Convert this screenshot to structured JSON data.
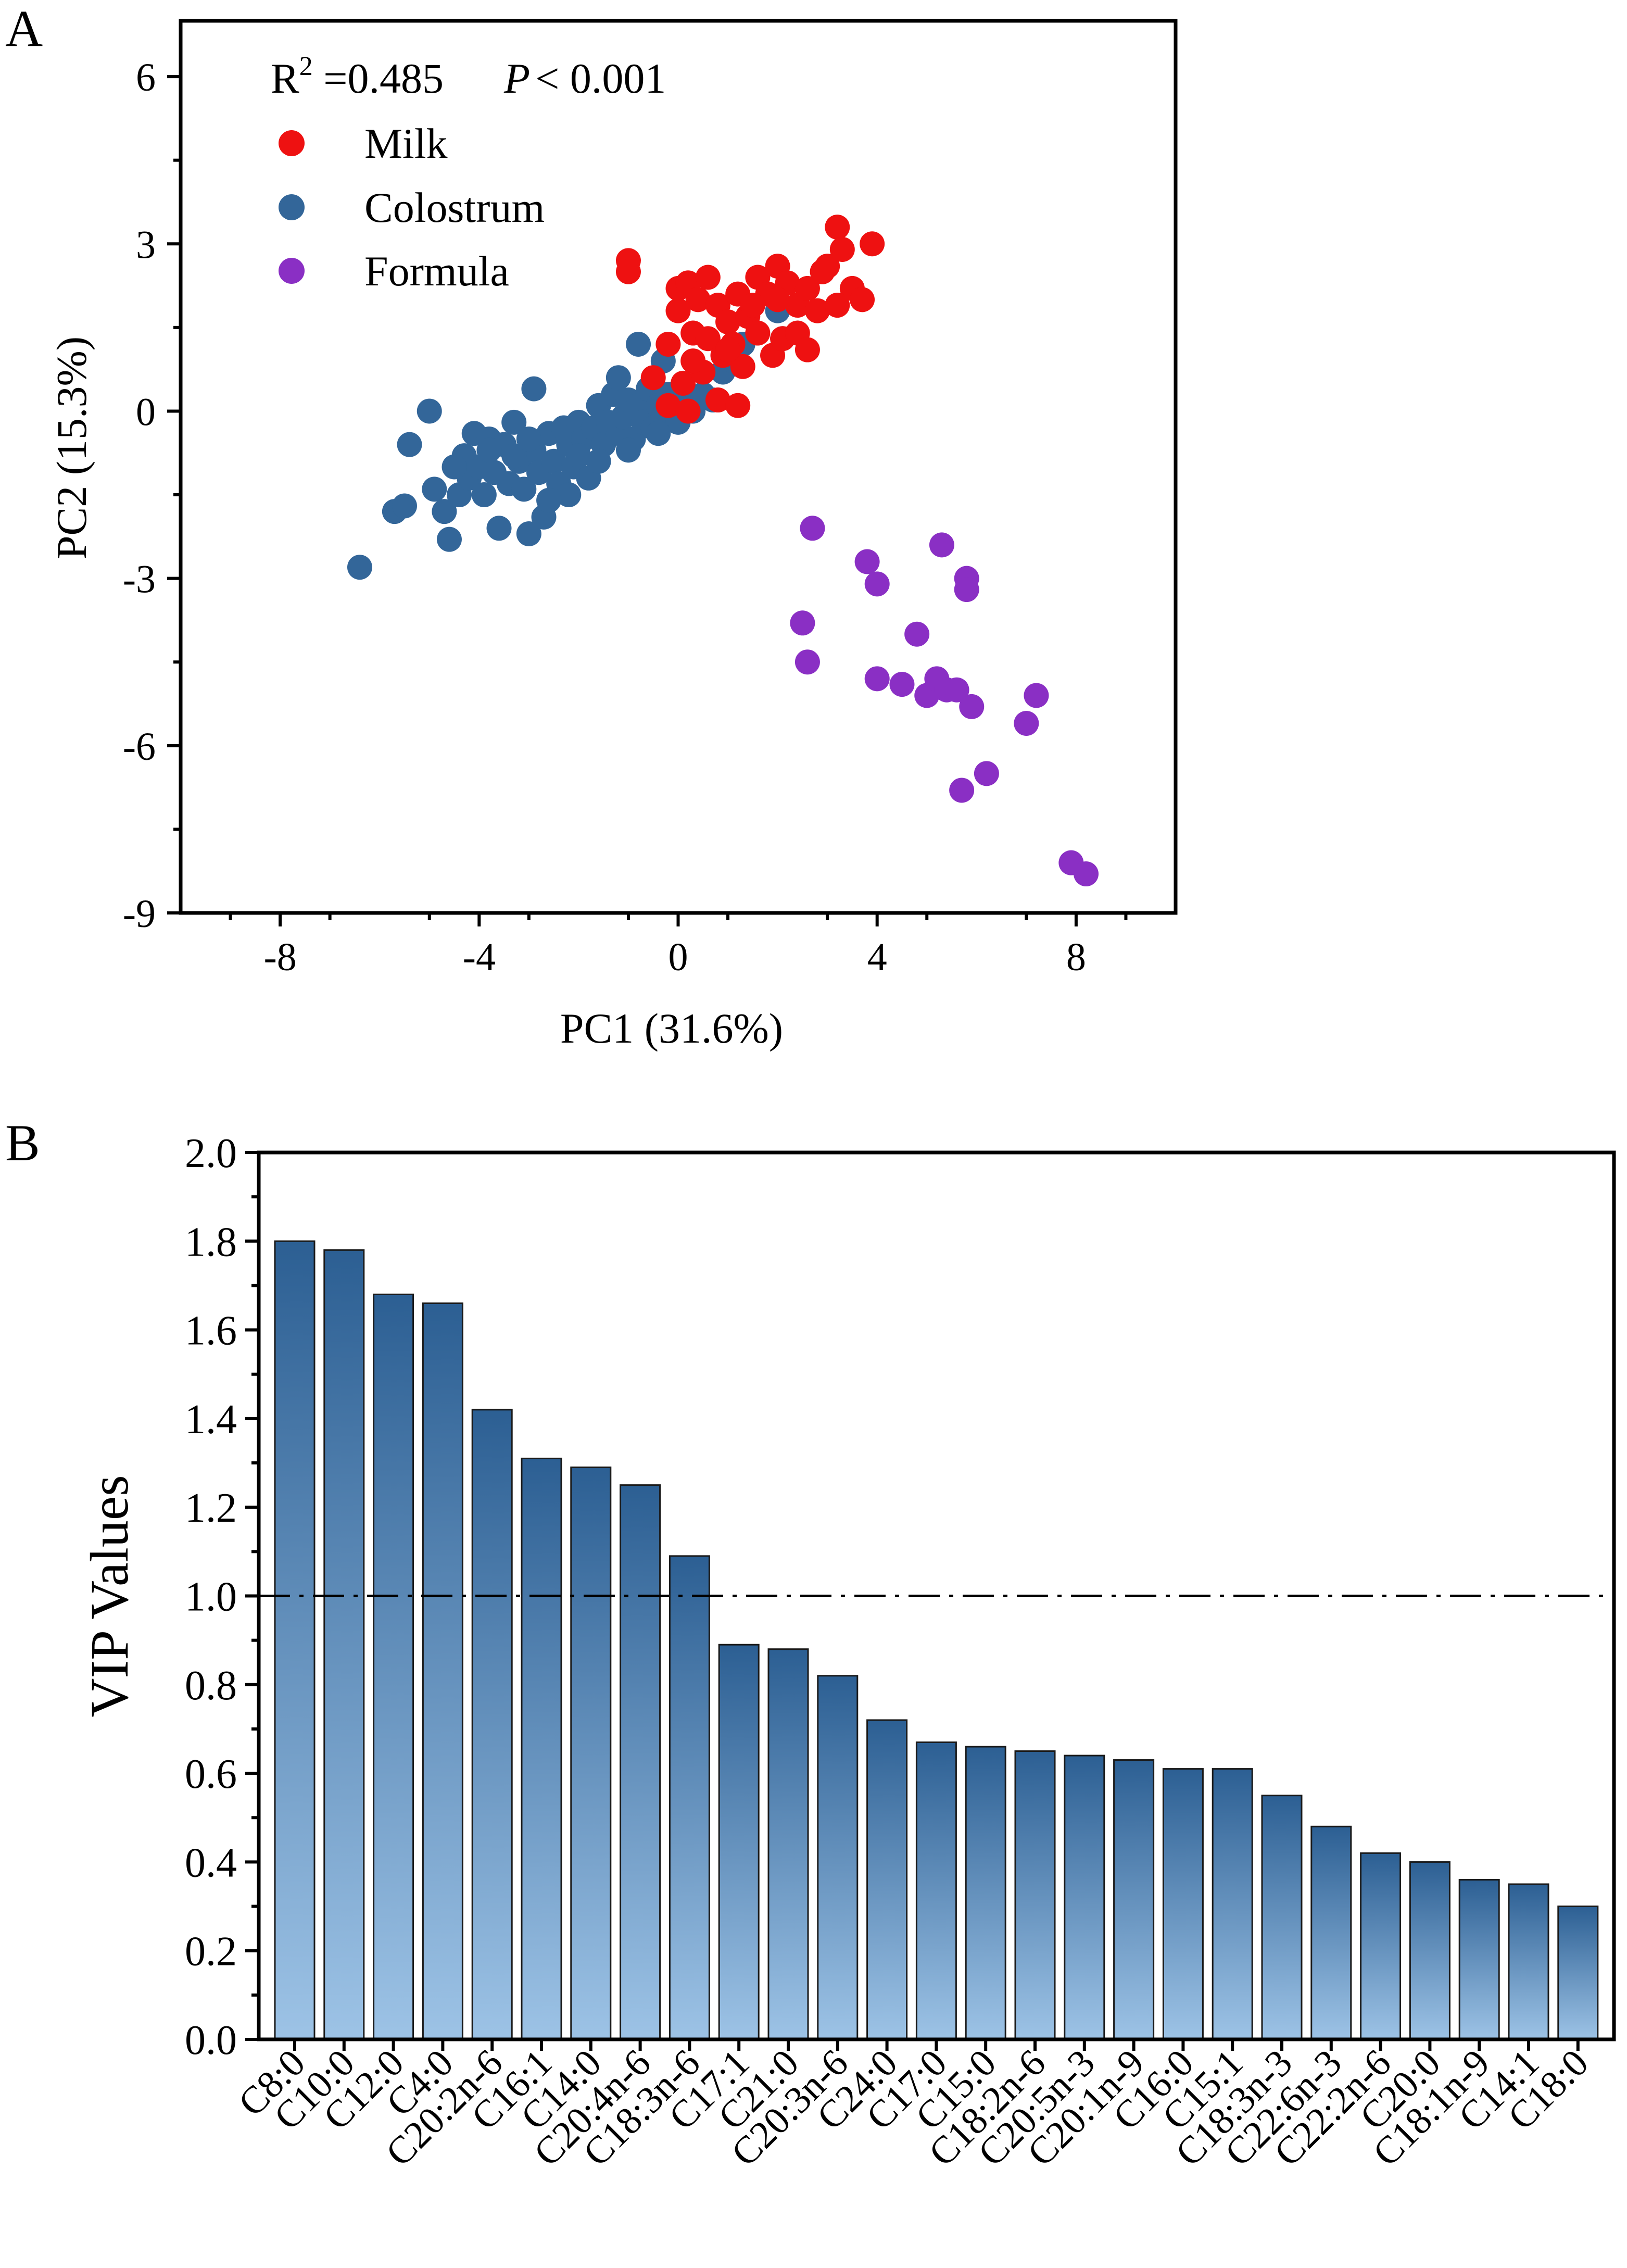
{
  "colors": {
    "milk": "#ee1111",
    "colostrum": "#336699",
    "formula": "#8a2fc4",
    "bar_top": "#2c5f93",
    "bar_bottom": "#9dc3e6"
  },
  "chart_data": [
    {
      "panel": "A",
      "type": "scatter",
      "xlabel": "PC1 (31.6%)",
      "ylabel": "PC2 (15.3%)",
      "xlim": [
        -10,
        10
      ],
      "ylim": [
        -9,
        7
      ],
      "xticks": [
        -8,
        -4,
        0,
        4,
        8
      ],
      "yticks": [
        6,
        3,
        0,
        -3,
        -6,
        -9
      ],
      "annotation": {
        "r2_label": "R",
        "r2_sup": "2",
        "r2_rest": " =0.485",
        "p_label": "P",
        "p_rest": "< 0.001"
      },
      "series": [
        {
          "name": "Milk",
          "color_key": "milk",
          "points": [
            [
              -1.0,
              2.7
            ],
            [
              -1.0,
              2.5
            ],
            [
              0.0,
              2.2
            ],
            [
              0.2,
              2.3
            ],
            [
              0.4,
              2.0
            ],
            [
              0.6,
              2.4
            ],
            [
              0.8,
              1.9
            ],
            [
              1.0,
              1.6
            ],
            [
              1.2,
              2.1
            ],
            [
              1.4,
              1.7
            ],
            [
              1.6,
              2.4
            ],
            [
              1.8,
              2.1
            ],
            [
              2.0,
              2.6
            ],
            [
              2.2,
              2.3
            ],
            [
              2.4,
              1.9
            ],
            [
              2.6,
              2.2
            ],
            [
              2.8,
              1.8
            ],
            [
              3.0,
              2.6
            ],
            [
              3.2,
              3.3
            ],
            [
              3.3,
              2.9
            ],
            [
              3.5,
              2.2
            ],
            [
              3.7,
              2.0
            ],
            [
              3.9,
              3.0
            ],
            [
              0.0,
              1.8
            ],
            [
              0.3,
              1.4
            ],
            [
              0.6,
              1.3
            ],
            [
              0.9,
              1.0
            ],
            [
              1.1,
              1.2
            ],
            [
              1.3,
              0.8
            ],
            [
              1.6,
              1.4
            ],
            [
              1.9,
              1.0
            ],
            [
              2.1,
              1.3
            ],
            [
              2.4,
              1.4
            ],
            [
              2.6,
              1.1
            ],
            [
              -0.2,
              1.2
            ],
            [
              -0.5,
              0.6
            ],
            [
              0.1,
              0.5
            ],
            [
              0.5,
              0.7
            ],
            [
              0.8,
              0.2
            ],
            [
              1.2,
              0.1
            ],
            [
              -0.2,
              0.1
            ],
            [
              0.2,
              0.0
            ],
            [
              2.0,
              2.0
            ],
            [
              2.9,
              2.5
            ],
            [
              1.5,
              1.9
            ],
            [
              1.0,
              1.1
            ],
            [
              0.3,
              0.9
            ],
            [
              3.2,
              1.9
            ]
          ]
        },
        {
          "name": "Colostrum",
          "color_key": "colostrum",
          "points": [
            [
              -6.4,
              -2.8
            ],
            [
              -5.7,
              -1.8
            ],
            [
              -5.5,
              -1.7
            ],
            [
              -5.4,
              -0.6
            ],
            [
              -5.0,
              0.0
            ],
            [
              -4.9,
              -1.4
            ],
            [
              -4.7,
              -1.8
            ],
            [
              -4.6,
              -2.3
            ],
            [
              -4.4,
              -1.5
            ],
            [
              -4.3,
              -0.8
            ],
            [
              -4.2,
              -1.2
            ],
            [
              -4.1,
              -0.4
            ],
            [
              -4.0,
              -1.0
            ],
            [
              -3.9,
              -1.5
            ],
            [
              -3.8,
              -0.5
            ],
            [
              -3.7,
              -1.1
            ],
            [
              -3.6,
              -2.1
            ],
            [
              -3.5,
              -0.6
            ],
            [
              -3.4,
              -1.3
            ],
            [
              -3.3,
              -0.2
            ],
            [
              -3.2,
              -0.9
            ],
            [
              -3.1,
              -1.4
            ],
            [
              -3.0,
              -2.2
            ],
            [
              -2.9,
              -0.7
            ],
            [
              -2.8,
              -1.1
            ],
            [
              -2.7,
              -1.9
            ],
            [
              -2.6,
              -0.4
            ],
            [
              -2.5,
              -0.9
            ],
            [
              -2.4,
              -1.3
            ],
            [
              -2.3,
              -0.3
            ],
            [
              -2.2,
              -0.6
            ],
            [
              -2.1,
              -1.0
            ],
            [
              -2.0,
              -0.2
            ],
            [
              -1.9,
              -0.5
            ],
            [
              -1.8,
              -1.2
            ],
            [
              -1.7,
              -0.3
            ],
            [
              -1.6,
              0.1
            ],
            [
              -1.5,
              -0.6
            ],
            [
              -1.4,
              -0.2
            ],
            [
              -1.3,
              0.3
            ],
            [
              -1.2,
              -0.4
            ],
            [
              -1.1,
              -0.1
            ],
            [
              -1.0,
              0.2
            ],
            [
              -0.9,
              -0.5
            ],
            [
              -0.8,
              0.1
            ],
            [
              -0.7,
              -0.2
            ],
            [
              -0.6,
              0.4
            ],
            [
              -0.5,
              -0.3
            ],
            [
              -0.4,
              0.1
            ],
            [
              -0.3,
              -0.1
            ],
            [
              -0.2,
              0.3
            ],
            [
              0.0,
              -0.2
            ],
            [
              0.1,
              0.2
            ],
            [
              0.3,
              0.0
            ],
            [
              0.5,
              0.3
            ],
            [
              0.7,
              0.2
            ],
            [
              0.9,
              0.7
            ],
            [
              1.1,
              0.9
            ],
            [
              1.3,
              1.2
            ],
            [
              2.0,
              1.8
            ],
            [
              2.1,
              1.3
            ],
            [
              -0.8,
              1.2
            ],
            [
              -0.3,
              0.9
            ],
            [
              -2.9,
              0.4
            ],
            [
              -3.3,
              -0.8
            ],
            [
              -4.5,
              -1.0
            ],
            [
              -2.2,
              -1.5
            ],
            [
              -1.6,
              -0.9
            ],
            [
              -3.8,
              -0.7
            ],
            [
              -2.6,
              -1.6
            ],
            [
              -1.2,
              0.6
            ],
            [
              -0.4,
              -0.4
            ],
            [
              -3.0,
              -0.5
            ],
            [
              -2.0,
              -0.8
            ],
            [
              -1.0,
              -0.7
            ]
          ]
        },
        {
          "name": "Formula",
          "color_key": "formula",
          "points": [
            [
              2.7,
              -2.1
            ],
            [
              2.5,
              -3.8
            ],
            [
              2.6,
              -4.5
            ],
            [
              3.8,
              -2.7
            ],
            [
              4.0,
              -3.1
            ],
            [
              4.0,
              -4.8
            ],
            [
              4.5,
              -4.9
            ],
            [
              4.8,
              -4.0
            ],
            [
              5.0,
              -5.1
            ],
            [
              5.2,
              -4.8
            ],
            [
              5.3,
              -2.4
            ],
            [
              5.4,
              -5.0
            ],
            [
              5.6,
              -5.0
            ],
            [
              5.7,
              -6.8
            ],
            [
              5.8,
              -3.0
            ],
            [
              5.8,
              -3.2
            ],
            [
              5.9,
              -5.3
            ],
            [
              6.2,
              -6.5
            ],
            [
              7.0,
              -5.6
            ],
            [
              7.2,
              -5.1
            ],
            [
              7.9,
              -8.1
            ],
            [
              8.2,
              -8.3
            ]
          ]
        }
      ]
    },
    {
      "panel": "B",
      "type": "bar",
      "ylabel": "VIP Values",
      "ylim": [
        0.0,
        2.0
      ],
      "yticks": [
        "0.0",
        "0.2",
        "0.4",
        "0.6",
        "0.8",
        "1.0",
        "1.2",
        "1.4",
        "1.6",
        "1.8",
        "2.0"
      ],
      "threshold": 1.0,
      "categories": [
        "C8:0",
        "C10:0",
        "C12:0",
        "C4:0",
        "C20:2n-6",
        "C16:1",
        "C14:0",
        "C20:4n-6",
        "C18:3n-6",
        "C17:1",
        "C21:0",
        "C20:3n-6",
        "C24:0",
        "C17:0",
        "C15:0",
        "C18:2n-6",
        "C20:5n-3",
        "C20:1n-9",
        "C16:0",
        "C15:1",
        "C18:3n-3",
        "C22:6n-3",
        "C22:2n-6",
        "C20:0",
        "C18:1n-9",
        "C14:1",
        "C18:0"
      ],
      "values": [
        1.8,
        1.78,
        1.68,
        1.66,
        1.42,
        1.31,
        1.29,
        1.25,
        1.09,
        0.89,
        0.88,
        0.82,
        0.72,
        0.67,
        0.66,
        0.65,
        0.64,
        0.63,
        0.61,
        0.61,
        0.55,
        0.48,
        0.42,
        0.4,
        0.36,
        0.35,
        0.3
      ]
    }
  ]
}
